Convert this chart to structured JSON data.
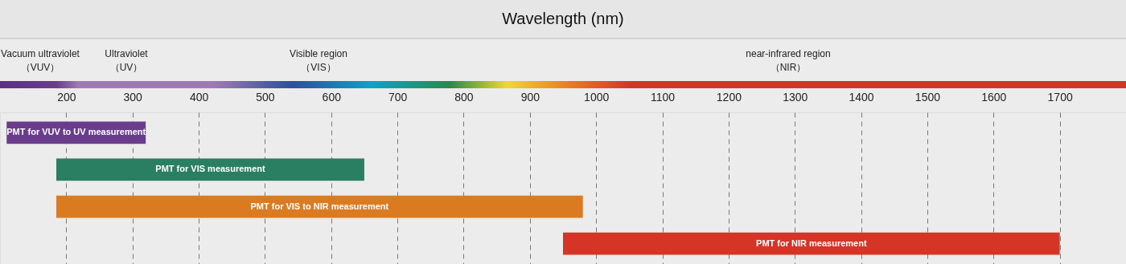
{
  "chart_data": {
    "type": "bar",
    "orientation": "horizontal",
    "title": "Wavelength (nm)",
    "categories": [
      "PMT for VUV  to UV measurement",
      "PMT for VIS measurement",
      "PMT for VIS to NIR measurement",
      "PMT for NIR measurement"
    ],
    "base": [
      110,
      185,
      185,
      950
    ],
    "values": [
      210,
      465,
      795,
      750
    ],
    "colors": [
      "#693d8c",
      "#2a7f62",
      "#da7b22",
      "#d43526"
    ],
    "xlim": [
      100,
      1800
    ],
    "xticks": [
      200,
      300,
      400,
      500,
      600,
      700,
      800,
      900,
      1000,
      1100,
      1200,
      1300,
      1400,
      1500,
      1600,
      1700
    ],
    "grid": "x",
    "annotations": [
      "Vacuum ultraviolet\n（VUV）",
      "Ultraviolet\n（UV）",
      "Visible region\n（VIS）",
      "near-infrared region\n（NIR）"
    ]
  }
}
